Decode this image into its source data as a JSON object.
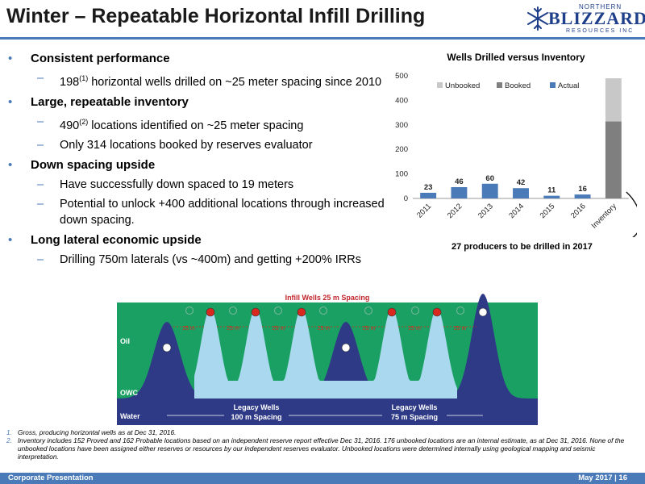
{
  "title": "Winter – Repeatable Horizontal Infill Drilling",
  "logo": {
    "line1": "NORTHERN",
    "line2": "BLIZZARD",
    "line3": "RESOURCES INC"
  },
  "bullets": [
    {
      "heading": "Consistent performance",
      "subs": [
        {
          "pre": "198",
          "sup": "(1)",
          "post": " horizontal wells drilled on ~25 meter spacing since 2010"
        }
      ]
    },
    {
      "heading": "Large, repeatable inventory",
      "subs": [
        {
          "pre": "490",
          "sup": "(2)",
          "post": " locations identified on ~25 meter spacing"
        },
        {
          "pre": "Only 314 locations booked by reserves evaluator",
          "sup": "",
          "post": ""
        }
      ]
    },
    {
      "heading": "Down spacing upside",
      "subs": [
        {
          "pre": "Have successfully down spaced to 19 meters",
          "sup": "",
          "post": ""
        },
        {
          "pre": "Potential to unlock +400 additional locations through increased down spacing.",
          "sup": "",
          "post": ""
        }
      ]
    },
    {
      "heading": "Long lateral economic upside",
      "subs": [
        {
          "pre": "Drilling 750m laterals (vs ~400m) and getting +200% IRRs",
          "sup": "",
          "post": ""
        }
      ]
    }
  ],
  "chart_data": {
    "type": "bar",
    "title": "Wells Drilled versus Inventory",
    "categories": [
      "2011",
      "2012",
      "2013",
      "2014",
      "2015",
      "2016",
      "Inventory"
    ],
    "series": [
      {
        "name": "Actual",
        "values": [
          23,
          46,
          60,
          42,
          11,
          16,
          0
        ],
        "color": "#4a7ab8"
      },
      {
        "name": "Booked",
        "values": [
          0,
          0,
          0,
          0,
          0,
          0,
          314
        ],
        "color": "#7f7f7f"
      },
      {
        "name": "Unbooked",
        "values": [
          0,
          0,
          0,
          0,
          0,
          0,
          176
        ],
        "color": "#c8c8c8"
      }
    ],
    "data_labels": [
      "23",
      "46",
      "60",
      "42",
      "11",
      "16",
      ""
    ],
    "yticks": [
      0,
      100,
      200,
      300,
      400,
      500
    ],
    "ylim": [
      0,
      500
    ],
    "legend": [
      "Unbooked",
      "Booked",
      "Actual"
    ],
    "legend_position": "top-left",
    "grid": false,
    "stacked": true,
    "annotation": "27 producers to be drilled in 2017"
  },
  "diagram": {
    "title": "Infill Wells 25 m Spacing",
    "labels": {
      "oil": "Oil",
      "owc": "OWC",
      "water": "Water"
    },
    "legacy_left": [
      "Legacy Wells",
      "100 m Spacing"
    ],
    "legacy_right": [
      "Legacy Wells",
      "75 m Spacing"
    ],
    "spacings": [
      "25 m",
      "25 m",
      "25 m",
      "25 m",
      "25 m",
      "25 m",
      "25 m"
    ],
    "colors": {
      "oil": "#1aa063",
      "water_band": "#2f3a86",
      "cone": "#a9d8ef",
      "infill": "#d9281e"
    }
  },
  "footnotes": [
    {
      "num": "1.",
      "text": "Gross, producing horizontal wells as at Dec 31, 2016."
    },
    {
      "num": "2.",
      "text": "Inventory includes 152 Proved and 162 Probable locations based on an independent reserve report effective Dec 31, 2016. 176 unbooked locations are an internal estimate, as at Dec 31, 2016. None of the unbooked locations have been assigned either reserves or resources by our independent reserves evaluator. Unbooked locations were determined internally using geological mapping and seismic interpretation."
    }
  ],
  "footer": {
    "left": "Corporate Presentation",
    "right": "May 2017 | 16"
  },
  "accent": "#4a7ab8"
}
